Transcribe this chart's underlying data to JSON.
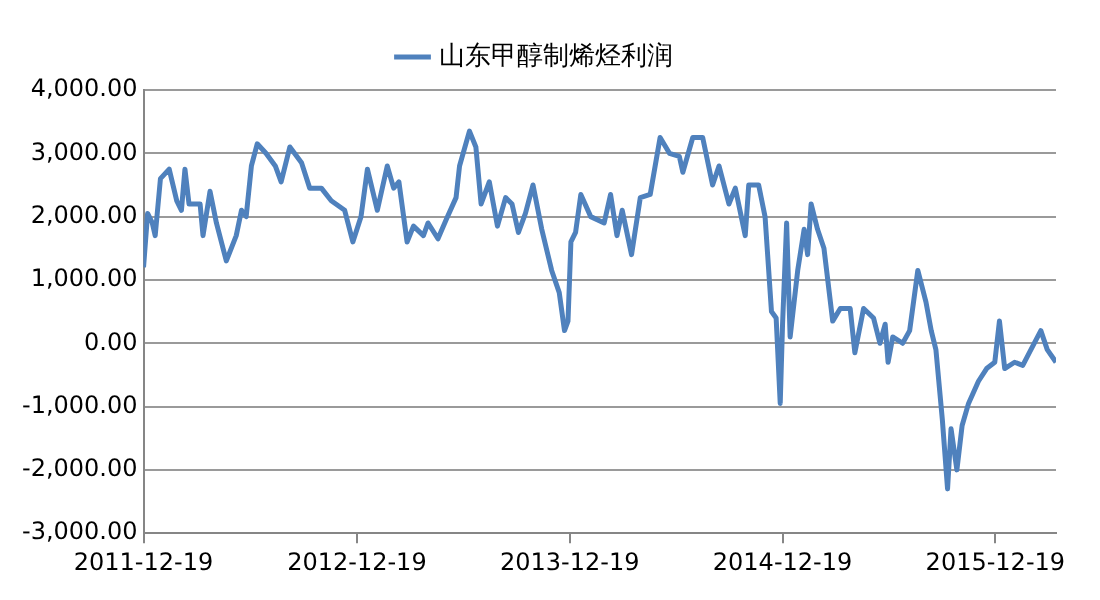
{
  "chart_data": {
    "type": "line",
    "legend": "top",
    "grid": "y",
    "marker": "none",
    "line_style": "solid",
    "x": [
      "2011-12-19",
      "2011-12-26",
      "2012-01-03",
      "2012-01-08",
      "2012-01-17",
      "2012-02-01",
      "2012-02-14",
      "2012-02-22",
      "2012-02-28",
      "2012-03-06",
      "2012-03-25",
      "2012-03-30",
      "2012-04-11",
      "2012-04-22",
      "2012-05-09",
      "2012-05-26",
      "2012-06-04",
      "2012-06-12",
      "2012-06-21",
      "2012-07-01",
      "2012-07-16",
      "2012-08-01",
      "2012-08-11",
      "2012-08-26",
      "2012-09-15",
      "2012-09-29",
      "2012-10-19",
      "2012-11-05",
      "2012-11-28",
      "2012-12-12",
      "2012-12-26",
      "2013-01-06",
      "2013-01-23",
      "2013-02-09",
      "2013-02-20",
      "2013-03-01",
      "2013-03-15",
      "2013-03-26",
      "2013-04-12",
      "2013-04-20",
      "2013-05-07",
      "2013-05-21",
      "2013-06-07",
      "2013-06-13",
      "2013-06-30",
      "2013-07-11",
      "2013-07-20",
      "2013-08-03",
      "2013-08-17",
      "2013-08-31",
      "2013-09-11",
      "2013-09-22",
      "2013-10-04",
      "2013-10-17",
      "2013-11-01",
      "2013-11-18",
      "2013-12-01",
      "2013-12-10",
      "2013-12-16",
      "2013-12-21",
      "2013-12-29",
      "2014-01-07",
      "2014-01-24",
      "2014-02-16",
      "2014-02-27",
      "2014-03-10",
      "2014-03-19",
      "2014-04-04",
      "2014-04-19",
      "2014-05-06",
      "2014-05-23",
      "2014-06-08",
      "2014-06-25",
      "2014-07-01",
      "2014-07-18",
      "2014-08-04",
      "2014-08-21",
      "2014-09-01",
      "2014-09-18",
      "2014-09-29",
      "2014-10-16",
      "2014-10-22",
      "2014-11-08",
      "2014-11-19",
      "2014-11-30",
      "2014-12-08",
      "2014-12-15",
      "2014-12-19",
      "2014-12-26",
      "2015-01-01",
      "2015-01-14",
      "2015-01-25",
      "2015-01-31",
      "2015-02-06",
      "2015-02-17",
      "2015-02-28",
      "2015-03-15",
      "2015-03-28",
      "2015-04-14",
      "2015-04-22",
      "2015-05-07",
      "2015-05-24",
      "2015-06-04",
      "2015-06-13",
      "2015-06-18",
      "2015-06-26",
      "2015-07-13",
      "2015-07-25",
      "2015-08-08",
      "2015-08-22",
      "2015-08-31",
      "2015-09-08",
      "2015-09-19",
      "2015-09-28",
      "2015-10-04",
      "2015-10-14",
      "2015-10-23",
      "2015-11-03",
      "2015-11-20",
      "2015-12-04",
      "2015-12-18",
      "2015-12-26",
      "2016-01-04",
      "2016-01-21",
      "2016-02-04",
      "2016-02-18",
      "2016-03-06",
      "2016-03-17",
      "2016-04-01"
    ],
    "series": [
      {
        "name": "山东甲醇制烯烃利润",
        "color": "#4f81bd",
        "values": [
          1200,
          2050,
          1900,
          1700,
          2600,
          2750,
          2250,
          2100,
          2750,
          2200,
          2200,
          1700,
          2400,
          1900,
          1300,
          1700,
          2100,
          2000,
          2800,
          3150,
          3000,
          2800,
          2550,
          3100,
          2850,
          2450,
          2450,
          2250,
          2100,
          1600,
          2000,
          2750,
          2100,
          2800,
          2450,
          2550,
          1600,
          1850,
          1700,
          1900,
          1650,
          1950,
          2300,
          2800,
          3350,
          3100,
          2200,
          2550,
          1850,
          2300,
          2200,
          1750,
          2050,
          2500,
          1800,
          1150,
          800,
          200,
          350,
          1600,
          1750,
          2350,
          2000,
          1900,
          2350,
          1700,
          2100,
          1400,
          2300,
          2350,
          3250,
          3000,
          2950,
          2700,
          3250,
          3250,
          2500,
          2800,
          2200,
          2450,
          1700,
          2500,
          2500,
          2000,
          500,
          400,
          -950,
          300,
          1900,
          100,
          1150,
          1800,
          1400,
          2200,
          1800,
          1500,
          350,
          550,
          550,
          -150,
          550,
          400,
          0,
          300,
          -300,
          100,
          0,
          200,
          1150,
          650,
          200,
          -100,
          -1200,
          -2300,
          -1350,
          -2000,
          -1300,
          -950,
          -600,
          -400,
          -300,
          350,
          -400,
          -300,
          -350,
          -100,
          200,
          -100,
          -300
        ]
      }
    ],
    "xlim": [
      "2011-12-19",
      "2016-04-01"
    ],
    "xticks": [
      "2011-12-19",
      "2012-12-19",
      "2013-12-19",
      "2014-12-19",
      "2015-12-19"
    ],
    "ylim": [
      -3000,
      4000
    ],
    "yticks": [
      {
        "value": -3000,
        "label": "-3,000.00"
      },
      {
        "value": -2000,
        "label": "-2,000.00"
      },
      {
        "value": -1000,
        "label": "-1,000.00"
      },
      {
        "value": 0,
        "label": "0.00"
      },
      {
        "value": 1000,
        "label": "1,000.00"
      },
      {
        "value": 2000,
        "label": "2,000.00"
      },
      {
        "value": 3000,
        "label": "3,000.00"
      },
      {
        "value": 4000,
        "label": "4,000.00"
      }
    ]
  }
}
